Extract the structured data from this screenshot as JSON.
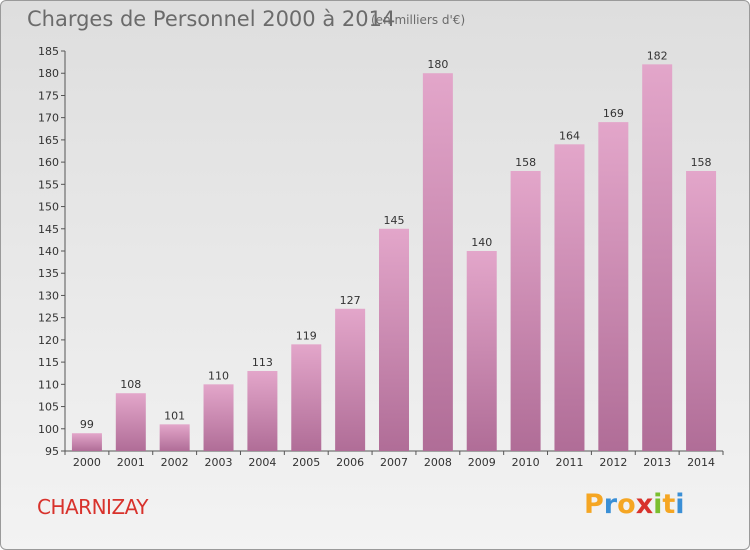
{
  "header": {
    "title": "Charges de Personnel 2000 à 2014",
    "subtitle": "(en milliers d'€)"
  },
  "footer": {
    "commune": "CHARNIZAY",
    "logo": {
      "letters": [
        "P",
        "r",
        "o",
        "x",
        "i",
        "t",
        "i"
      ],
      "colors": [
        "#f5a623",
        "#3a8fd6",
        "#f5a623",
        "#d8322c",
        "#7bbf2f",
        "#f5a623",
        "#3a8fd6"
      ]
    }
  },
  "chart_data": {
    "type": "bar",
    "title": "Charges de Personnel 2000 à 2014",
    "subtitle": "(en milliers d'€)",
    "categories": [
      "2000",
      "2001",
      "2002",
      "2003",
      "2004",
      "2005",
      "2006",
      "2007",
      "2008",
      "2009",
      "2010",
      "2011",
      "2012",
      "2013",
      "2014"
    ],
    "values": [
      99,
      108,
      101,
      110,
      113,
      119,
      127,
      145,
      180,
      140,
      158,
      164,
      169,
      182,
      158
    ],
    "ylim": [
      95,
      185
    ],
    "yticks": [
      95,
      100,
      105,
      110,
      115,
      120,
      125,
      130,
      135,
      140,
      145,
      150,
      155,
      160,
      165,
      170,
      175,
      180,
      185
    ],
    "grid": false,
    "bar_color": "#c97ba8"
  }
}
